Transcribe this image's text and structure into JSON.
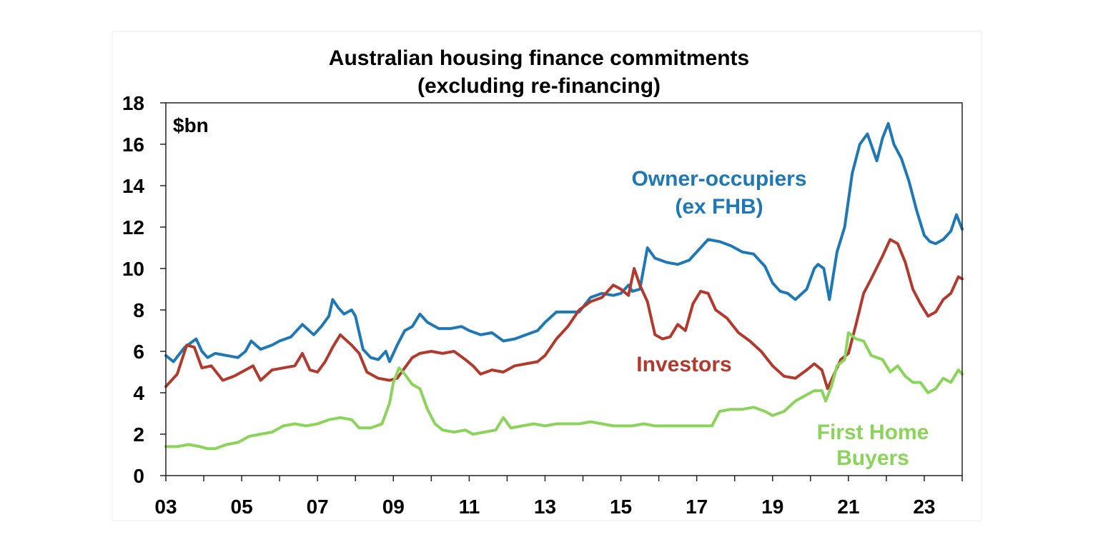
{
  "chart_data": {
    "type": "line",
    "title": "Australian housing finance commitments",
    "subtitle": "(excluding re-financing)",
    "unit_label": "$bn",
    "xlabel": "",
    "ylabel": "",
    "x_tick_labels": [
      "03",
      "05",
      "07",
      "09",
      "11",
      "13",
      "15",
      "17",
      "19",
      "21",
      "23"
    ],
    "x_ticks": [
      2003,
      2005,
      2007,
      2009,
      2011,
      2013,
      2015,
      2017,
      2019,
      2021,
      2023
    ],
    "xlim": [
      2003,
      2024
    ],
    "y_tick_labels": [
      "0",
      "2",
      "4",
      "6",
      "8",
      "10",
      "12",
      "14",
      "16",
      "18"
    ],
    "ylim": [
      0,
      18
    ],
    "grid": false,
    "series": [
      {
        "name": "Owner-occupiers (ex FHB)",
        "label_lines": [
          "Owner-occupiers",
          "(ex FHB)"
        ],
        "color": "#1F78B4",
        "x": [
          2003.0,
          2003.2,
          2003.5,
          2003.8,
          2003.95,
          2004.1,
          2004.3,
          2004.6,
          2004.9,
          2005.1,
          2005.25,
          2005.5,
          2005.8,
          2006.0,
          2006.3,
          2006.6,
          2006.9,
          2007.1,
          2007.3,
          2007.4,
          2007.55,
          2007.7,
          2007.9,
          2008.0,
          2008.2,
          2008.4,
          2008.6,
          2008.8,
          2008.9,
          2009.1,
          2009.3,
          2009.5,
          2009.7,
          2009.9,
          2010.2,
          2010.5,
          2010.8,
          2011.0,
          2011.3,
          2011.6,
          2011.9,
          2012.2,
          2012.5,
          2012.8,
          2013.0,
          2013.3,
          2013.6,
          2013.9,
          2014.2,
          2014.5,
          2014.8,
          2015.0,
          2015.2,
          2015.3,
          2015.5,
          2015.7,
          2015.9,
          2016.2,
          2016.5,
          2016.8,
          2017.0,
          2017.3,
          2017.6,
          2017.9,
          2018.2,
          2018.5,
          2018.8,
          2019.0,
          2019.2,
          2019.4,
          2019.6,
          2019.9,
          2020.1,
          2020.2,
          2020.35,
          2020.5,
          2020.7,
          2020.9,
          2021.1,
          2021.3,
          2021.5,
          2021.75,
          2021.9,
          2022.05,
          2022.2,
          2022.4,
          2022.6,
          2022.8,
          2023.0,
          2023.15,
          2023.3,
          2023.5,
          2023.7,
          2023.85,
          2024.0
        ],
        "y": [
          5.8,
          5.5,
          6.2,
          6.6,
          6.0,
          5.7,
          5.9,
          5.8,
          5.7,
          6.0,
          6.5,
          6.1,
          6.3,
          6.5,
          6.7,
          7.3,
          6.8,
          7.2,
          7.7,
          8.5,
          8.1,
          7.8,
          8.0,
          7.7,
          6.1,
          5.7,
          5.6,
          6.0,
          5.5,
          6.3,
          7.0,
          7.2,
          7.8,
          7.4,
          7.1,
          7.1,
          7.2,
          7.0,
          6.8,
          6.9,
          6.5,
          6.6,
          6.8,
          7.0,
          7.4,
          7.9,
          7.9,
          7.9,
          8.6,
          8.8,
          8.7,
          8.8,
          9.2,
          8.9,
          9.0,
          11.0,
          10.5,
          10.3,
          10.2,
          10.4,
          10.8,
          11.4,
          11.3,
          11.1,
          10.8,
          10.7,
          10.1,
          9.3,
          8.9,
          8.8,
          8.5,
          9.0,
          10.0,
          10.2,
          10.0,
          8.5,
          10.8,
          12.0,
          14.6,
          16.0,
          16.5,
          15.2,
          16.3,
          17.0,
          16.0,
          15.3,
          14.2,
          12.8,
          11.6,
          11.3,
          11.2,
          11.4,
          11.8,
          12.6,
          11.9
        ]
      },
      {
        "name": "Investors",
        "label_lines": [
          "Investors"
        ],
        "color": "#B03A2E",
        "x": [
          2003.0,
          2003.3,
          2003.55,
          2003.75,
          2003.95,
          2004.2,
          2004.5,
          2004.8,
          2005.1,
          2005.3,
          2005.5,
          2005.8,
          2006.1,
          2006.4,
          2006.6,
          2006.8,
          2007.0,
          2007.2,
          2007.4,
          2007.6,
          2007.9,
          2008.1,
          2008.3,
          2008.6,
          2008.9,
          2009.1,
          2009.3,
          2009.5,
          2009.7,
          2010.0,
          2010.3,
          2010.6,
          2010.9,
          2011.1,
          2011.3,
          2011.6,
          2011.9,
          2012.2,
          2012.5,
          2012.8,
          2013.0,
          2013.3,
          2013.6,
          2013.9,
          2014.2,
          2014.5,
          2014.8,
          2015.0,
          2015.2,
          2015.35,
          2015.5,
          2015.7,
          2015.9,
          2016.1,
          2016.3,
          2016.5,
          2016.7,
          2016.9,
          2017.1,
          2017.3,
          2017.5,
          2017.8,
          2018.1,
          2018.4,
          2018.7,
          2019.0,
          2019.3,
          2019.6,
          2019.9,
          2020.1,
          2020.3,
          2020.45,
          2020.6,
          2020.8,
          2021.0,
          2021.2,
          2021.4,
          2021.6,
          2021.9,
          2022.1,
          2022.3,
          2022.5,
          2022.7,
          2022.9,
          2023.1,
          2023.3,
          2023.5,
          2023.7,
          2023.9,
          2024.0
        ],
        "y": [
          4.3,
          4.9,
          6.3,
          6.2,
          5.2,
          5.3,
          4.6,
          4.8,
          5.1,
          5.3,
          4.6,
          5.1,
          5.2,
          5.3,
          5.9,
          5.1,
          5.0,
          5.5,
          6.2,
          6.8,
          6.3,
          5.9,
          5.0,
          4.7,
          4.6,
          4.7,
          5.2,
          5.7,
          5.9,
          6.0,
          5.9,
          6.0,
          5.6,
          5.3,
          4.9,
          5.1,
          5.0,
          5.3,
          5.4,
          5.5,
          5.8,
          6.6,
          7.2,
          8.0,
          8.4,
          8.6,
          9.2,
          9.0,
          8.7,
          10.0,
          9.2,
          8.4,
          6.8,
          6.6,
          6.7,
          7.3,
          7.0,
          8.3,
          8.9,
          8.8,
          8.0,
          7.6,
          6.9,
          6.5,
          6.0,
          5.3,
          4.8,
          4.7,
          5.1,
          5.4,
          5.1,
          4.2,
          4.8,
          5.6,
          5.9,
          7.3,
          8.8,
          9.5,
          10.6,
          11.4,
          11.2,
          10.3,
          9.0,
          8.3,
          7.7,
          7.9,
          8.5,
          8.8,
          9.6,
          9.5
        ]
      },
      {
        "name": "First Home Buyers",
        "label_lines": [
          "First Home",
          "Buyers"
        ],
        "color": "#8BD35A",
        "x": [
          2003.0,
          2003.3,
          2003.6,
          2003.9,
          2004.1,
          2004.3,
          2004.6,
          2004.9,
          2005.2,
          2005.5,
          2005.8,
          2006.1,
          2006.4,
          2006.7,
          2007.0,
          2007.3,
          2007.6,
          2007.9,
          2008.1,
          2008.4,
          2008.7,
          2008.9,
          2009.0,
          2009.15,
          2009.3,
          2009.5,
          2009.7,
          2009.9,
          2010.1,
          2010.3,
          2010.6,
          2010.9,
          2011.1,
          2011.4,
          2011.7,
          2011.9,
          2012.1,
          2012.4,
          2012.7,
          2013.0,
          2013.3,
          2013.6,
          2013.9,
          2014.2,
          2014.5,
          2014.8,
          2015.0,
          2015.3,
          2015.6,
          2015.9,
          2016.2,
          2016.5,
          2016.8,
          2017.1,
          2017.4,
          2017.6,
          2017.9,
          2018.2,
          2018.5,
          2018.8,
          2019.0,
          2019.3,
          2019.6,
          2019.9,
          2020.1,
          2020.3,
          2020.4,
          2020.55,
          2020.7,
          2020.9,
          2021.0,
          2021.2,
          2021.4,
          2021.6,
          2021.9,
          2022.1,
          2022.3,
          2022.5,
          2022.7,
          2022.9,
          2023.1,
          2023.3,
          2023.5,
          2023.7,
          2023.9,
          2024.0
        ],
        "y": [
          1.4,
          1.4,
          1.5,
          1.4,
          1.3,
          1.3,
          1.5,
          1.6,
          1.9,
          2.0,
          2.1,
          2.4,
          2.5,
          2.4,
          2.5,
          2.7,
          2.8,
          2.7,
          2.3,
          2.3,
          2.5,
          3.5,
          4.5,
          5.2,
          4.9,
          4.4,
          4.2,
          3.2,
          2.5,
          2.2,
          2.1,
          2.2,
          2.0,
          2.1,
          2.2,
          2.8,
          2.3,
          2.4,
          2.5,
          2.4,
          2.5,
          2.5,
          2.5,
          2.6,
          2.5,
          2.4,
          2.4,
          2.4,
          2.5,
          2.4,
          2.4,
          2.4,
          2.4,
          2.4,
          2.4,
          3.1,
          3.2,
          3.2,
          3.3,
          3.1,
          2.9,
          3.1,
          3.6,
          3.9,
          4.1,
          4.1,
          3.6,
          4.3,
          5.3,
          5.6,
          6.9,
          6.6,
          6.5,
          5.8,
          5.6,
          5.0,
          5.3,
          4.8,
          4.5,
          4.5,
          4.0,
          4.2,
          4.7,
          4.5,
          5.1,
          4.9
        ]
      }
    ]
  }
}
